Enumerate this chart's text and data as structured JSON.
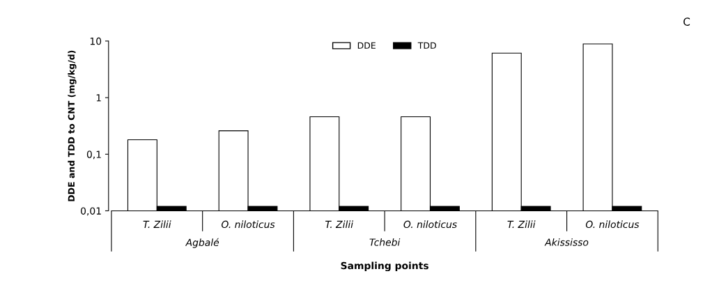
{
  "chart_data": {
    "type": "bar",
    "categories": [
      "T. Zilii",
      "O. niloticus",
      "T. Zilii",
      "O. niloticus",
      "T. Zilii",
      "O. niloticus"
    ],
    "series": [
      {
        "name": "DDE",
        "color": "#ffffff",
        "values": [
          0.18,
          0.26,
          0.46,
          0.46,
          6.1,
          8.9
        ]
      },
      {
        "name": "TDD",
        "color": "#000000",
        "values": [
          0.012,
          0.012,
          0.012,
          0.012,
          0.012,
          0.012
        ]
      }
    ],
    "xlabel": "Sampling points",
    "ylabel": "DDE and TDD to CNT (mg/kg/d)",
    "annotations": [
      "Agbalé",
      "Tchebi",
      "Akississo",
      "C"
    ],
    "log": "y",
    "ylim": [
      0.01,
      10
    ],
    "yticks": [
      {
        "value": 0.01,
        "label": "0,01"
      },
      {
        "value": 0.1,
        "label": "0,1"
      },
      1,
      10
    ],
    "grid": false,
    "legend": "top"
  }
}
